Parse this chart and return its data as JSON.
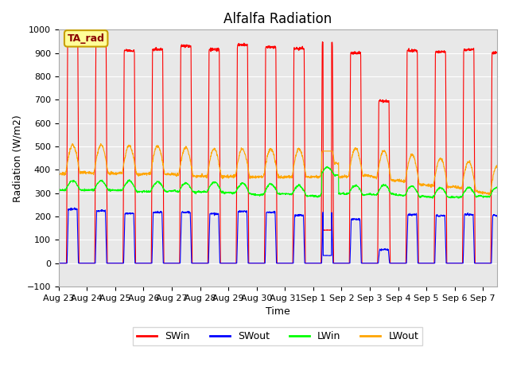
{
  "title": "Alfalfa Radiation",
  "xlabel": "Time",
  "ylabel": "Radiation (W/m2)",
  "ylim": [
    -100,
    1000
  ],
  "bg_color": "#e8e8e8",
  "annotation_text": "TA_rad",
  "annotation_bg": "#ffff99",
  "annotation_border": "#c8a000",
  "x_tick_labels": [
    "Aug 23",
    "Aug 24",
    "Aug 25",
    "Aug 26",
    "Aug 27",
    "Aug 28",
    "Aug 29",
    "Aug 30",
    "Aug 31",
    "Sep 1",
    "Sep 2",
    "Sep 3",
    "Sep 4",
    "Sep 5",
    "Sep 6",
    "Sep 7"
  ],
  "SWin_peaks": [
    940,
    950,
    910,
    915,
    930,
    915,
    935,
    925,
    920,
    945,
    900,
    695,
    910,
    905,
    915,
    900
  ],
  "SWout_peaks": [
    232,
    225,
    213,
    218,
    218,
    212,
    222,
    218,
    205,
    218,
    188,
    58,
    208,
    203,
    208,
    205
  ],
  "LWin_night": 298,
  "LWout_night": 375,
  "title_fontsize": 12,
  "axis_fontsize": 9,
  "tick_fontsize": 8,
  "legend_fontsize": 9
}
